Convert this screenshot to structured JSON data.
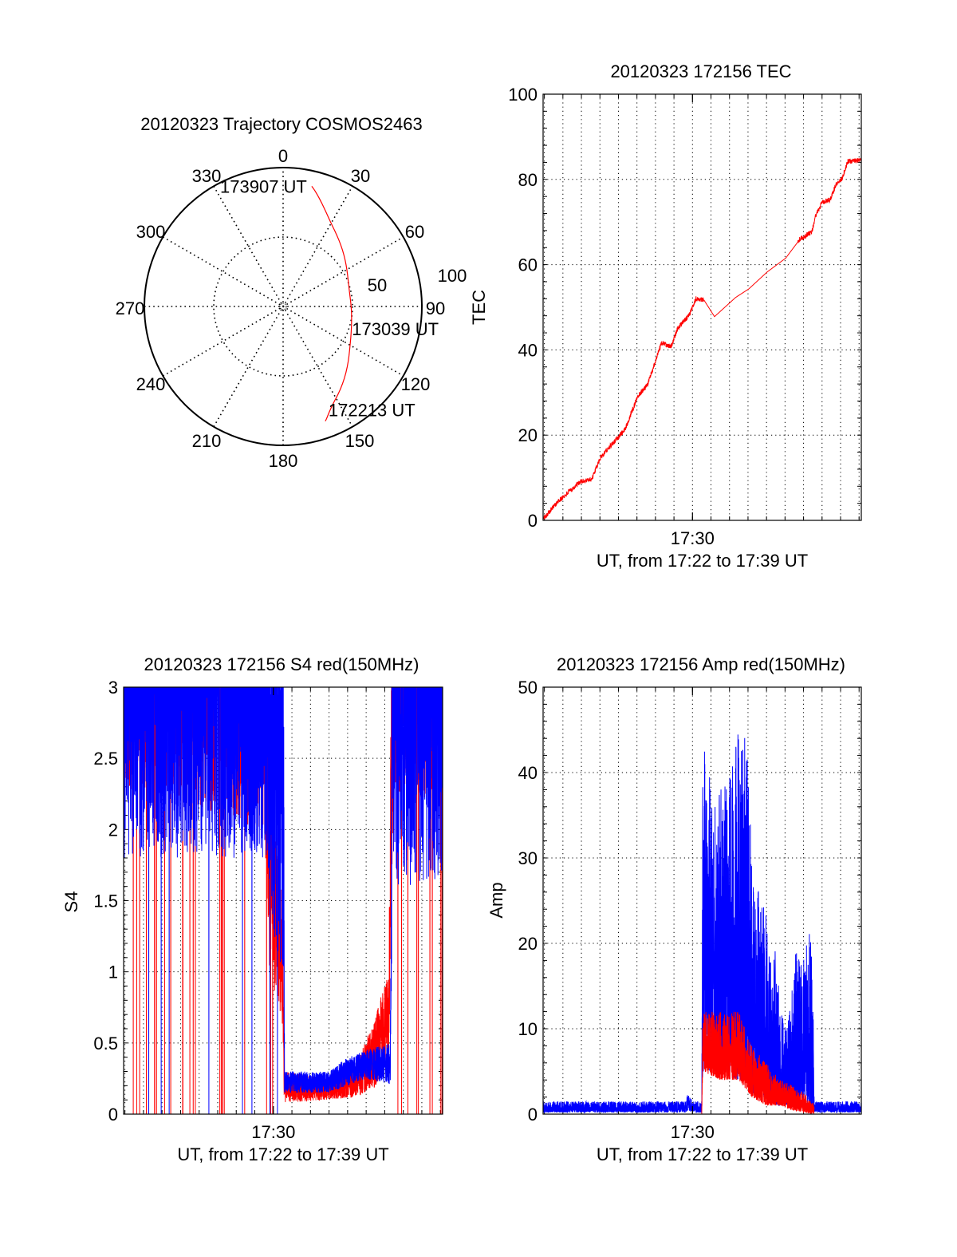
{
  "chart_data": [
    {
      "type": "polar",
      "title": "20120323 Trajectory COSMOS2463",
      "angle_labels": [
        "0",
        "30",
        "60",
        "90",
        "120",
        "150",
        "180",
        "210",
        "240",
        "270",
        "300",
        "330"
      ],
      "radial_labels": [
        "50",
        "100"
      ],
      "rlim": [
        0,
        100
      ],
      "trajectory": {
        "color": "#ff0000",
        "points_az_r": [
          [
            159.8,
            88
          ],
          [
            149.7,
            76
          ],
          [
            120.6,
            56
          ],
          [
            90,
            49
          ],
          [
            63,
            52
          ],
          [
            31.5,
            68
          ],
          [
            13.4,
            89
          ]
        ]
      },
      "annotations": [
        {
          "text": "172213 UT",
          "az": 159.8,
          "r": 88
        },
        {
          "text": "173039 UT",
          "az": 90,
          "r": 49
        },
        {
          "text": "173907 UT",
          "az": 13.4,
          "r": 89
        }
      ]
    },
    {
      "type": "line",
      "title": "20120323 172156 TEC",
      "ylabel": "TEC",
      "xlabel": "UT, from 17:22 to 17:39 UT",
      "xtick_label": "17:30",
      "xtick_value": 30,
      "x_units": "minutes after 17:00",
      "xlim": [
        21.93,
        39.12
      ],
      "ylim": [
        0,
        100
      ],
      "ytick_labels": [
        "0",
        "20",
        "40",
        "60",
        "80",
        "100"
      ],
      "ytick_step": 20,
      "yminor_step": 4,
      "grid": true,
      "series": [
        {
          "color": "#ff0000",
          "points": [
            [
              21.93,
              0.3
            ],
            [
              22.64,
              4
            ],
            [
              23.92,
              9
            ],
            [
              24.56,
              9.7
            ],
            [
              25.06,
              15
            ],
            [
              26.35,
              21.3
            ],
            [
              27.06,
              29.3
            ],
            [
              27.56,
              31.7
            ],
            [
              28.34,
              41.7
            ],
            [
              28.84,
              40.7
            ],
            [
              29.2,
              45
            ],
            [
              29.84,
              48.3
            ],
            [
              30.19,
              52
            ],
            [
              30.62,
              51.7
            ],
            [
              31.19,
              47.8
            ],
            [
              32.33,
              52.3
            ],
            [
              33.04,
              54.3
            ],
            [
              34.04,
              58.3
            ],
            [
              35.03,
              61.5
            ],
            [
              35.81,
              66
            ],
            [
              36.45,
              67.7
            ],
            [
              36.67,
              71.7
            ],
            [
              37.03,
              74.7
            ],
            [
              37.45,
              75.3
            ],
            [
              37.74,
              78.7
            ],
            [
              38.09,
              80.3
            ],
            [
              38.38,
              84.2
            ],
            [
              39.12,
              84.5
            ]
          ],
          "noise_ranges": [
            [
              21.93,
              30.6,
              0.6
            ],
            [
              35.7,
              39.12,
              0.6
            ]
          ]
        }
      ]
    },
    {
      "type": "line",
      "title": "20120323 172156 S4 red(150MHz)",
      "ylabel": "S4",
      "xlabel": "UT, from 17:22 to 17:39 UT",
      "xtick_label": "17:30",
      "xtick_value": 30,
      "x_units": "minutes after 17:00",
      "xlim": [
        21.93,
        39.12
      ],
      "ylim": [
        0,
        3
      ],
      "ytick_labels": [
        "0",
        "0.5",
        "1",
        "1.5",
        "2",
        "2.5",
        "3"
      ],
      "ytick_step": 0.5,
      "yminor_step": 0.1,
      "grid": true,
      "series": [
        {
          "color": "#ff0000",
          "range": [
            21.93,
            39.12
          ],
          "envelope": [
            [
              21.93,
              2.3,
              5
            ],
            [
              29.5,
              2.0,
              5
            ],
            [
              29.8,
              1.0,
              2.5
            ],
            [
              30.5,
              0.6,
              1.5
            ],
            [
              30.58,
              0.08,
              0.3
            ],
            [
              33,
              0.1,
              0.25
            ],
            [
              34.5,
              0.12,
              0.35
            ],
            [
              35.5,
              0.18,
              0.7
            ],
            [
              36.2,
              0.4,
              1.0
            ],
            [
              36.35,
              1.0,
              3
            ],
            [
              36.5,
              2.2,
              5
            ],
            [
              39.12,
              2.2,
              5
            ]
          ],
          "spikes": [
            [
              21.93,
              30.5,
              0.012
            ],
            [
              36.45,
              39.12,
              0.02
            ]
          ]
        },
        {
          "color": "#0000ff",
          "range": [
            21.93,
            39.12
          ],
          "envelope": [
            [
              21.93,
              1.8,
              4.5
            ],
            [
              29.6,
              1.8,
              4.5
            ],
            [
              29.9,
              1.2,
              4
            ],
            [
              30.55,
              1.0,
              4
            ],
            [
              30.6,
              0.15,
              0.3
            ],
            [
              33.0,
              0.15,
              0.3
            ],
            [
              34.0,
              0.2,
              0.4
            ],
            [
              35.0,
              0.25,
              0.45
            ],
            [
              36.3,
              0.2,
              0.5
            ],
            [
              36.42,
              1.6,
              4.5
            ],
            [
              39.12,
              1.6,
              4.5
            ]
          ],
          "spikes": [
            [
              21.93,
              30.5,
              0.004
            ]
          ]
        }
      ]
    },
    {
      "type": "line",
      "title": "20120323 172156 Amp red(150MHz)",
      "ylabel": "Amp",
      "xlabel": "UT, from 17:22 to 17:39 UT",
      "xtick_label": "17:30",
      "xtick_value": 30,
      "x_units": "minutes after 17:00",
      "xlim": [
        21.93,
        39.12
      ],
      "ylim": [
        0,
        50
      ],
      "ytick_labels": [
        "0",
        "10",
        "20",
        "30",
        "40",
        "50"
      ],
      "ytick_step": 10,
      "yminor_step": 2,
      "grid": true,
      "series": [
        {
          "color": "#0000ff",
          "range": [
            21.93,
            39.12
          ],
          "envelope": [
            [
              21.93,
              0.2,
              1.5
            ],
            [
              29.6,
              0.2,
              1.5
            ],
            [
              29.8,
              0.5,
              2.6
            ],
            [
              30.0,
              0.2,
              1.5
            ],
            [
              30.5,
              0.2,
              1.5
            ],
            [
              30.55,
              5,
              45
            ],
            [
              31.2,
              5,
              37
            ],
            [
              31.9,
              5,
              40
            ],
            [
              32.35,
              4,
              45
            ],
            [
              32.9,
              4,
              44
            ],
            [
              33.15,
              4,
              36
            ],
            [
              33.3,
              2,
              27
            ],
            [
              33.7,
              2,
              26
            ],
            [
              34.0,
              2,
              23
            ],
            [
              34.3,
              1.5,
              16
            ],
            [
              34.5,
              1,
              20
            ],
            [
              34.8,
              1,
              12
            ],
            [
              35.1,
              1,
              10
            ],
            [
              35.3,
              1,
              13
            ],
            [
              35.6,
              1,
              20
            ],
            [
              35.9,
              1,
              18
            ],
            [
              36.3,
              1,
              22
            ],
            [
              36.5,
              0.5,
              18
            ],
            [
              36.58,
              0.2,
              1.5
            ],
            [
              39.12,
              0.2,
              1.5
            ]
          ]
        },
        {
          "color": "#ff0000",
          "range": [
            30.5,
            36.58
          ],
          "envelope": [
            [
              30.5,
              0,
              0
            ],
            [
              30.55,
              5,
              12
            ],
            [
              31.5,
              4,
              12
            ],
            [
              32.5,
              4,
              12
            ],
            [
              33.2,
              2,
              8
            ],
            [
              34.0,
              1,
              6
            ],
            [
              34.8,
              1,
              4
            ],
            [
              35.3,
              0.5,
              3.5
            ],
            [
              36.0,
              0.2,
              2.5
            ],
            [
              36.58,
              0,
              1.2
            ]
          ]
        }
      ]
    }
  ]
}
